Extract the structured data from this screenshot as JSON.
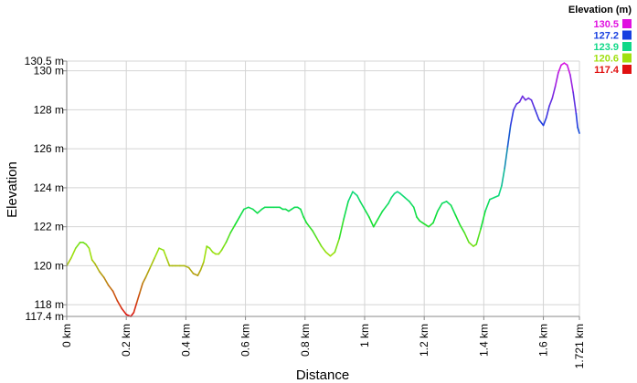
{
  "chart_data": {
    "type": "line",
    "title": "",
    "xlabel": "Distance",
    "ylabel": "Elevation",
    "x_unit": "km",
    "y_unit": "m",
    "xlim": [
      0,
      1.721
    ],
    "ylim": [
      117.4,
      130.5
    ],
    "x_ticks": [
      0,
      0.2,
      0.4,
      0.6,
      0.8,
      1.0,
      1.2,
      1.4,
      1.6,
      1.721
    ],
    "x_tick_labels": [
      "0 km",
      "0.2 km",
      "0.4 km",
      "0.6 km",
      "0.8 km",
      "1 km",
      "1.2 km",
      "1.4 km",
      "1.6 km",
      "1.721 km"
    ],
    "y_ticks": [
      117.4,
      118,
      120,
      122,
      124,
      126,
      128,
      130,
      130.5
    ],
    "y_tick_labels": [
      "117.4 m",
      "118 m",
      "120 m",
      "122 m",
      "124 m",
      "126 m",
      "128 m",
      "130 m",
      "130.5 m"
    ],
    "grid": true,
    "legend": {
      "title": "Elevation (m)",
      "placement": "top-right",
      "entries": [
        {
          "label": "130.5",
          "color": "#e010e0"
        },
        {
          "label": "127.2",
          "color": "#1840e0"
        },
        {
          "label": "123.9",
          "color": "#10d888"
        },
        {
          "label": "120.6",
          "color": "#a0e010"
        },
        {
          "label": "117.4",
          "color": "#e01010"
        }
      ]
    },
    "colormap": [
      {
        "value": 117.4,
        "color": "#e01010"
      },
      {
        "value": 120.6,
        "color": "#a0e010"
      },
      {
        "value": 122.3,
        "color": "#10e030"
      },
      {
        "value": 123.9,
        "color": "#10d888"
      },
      {
        "value": 127.2,
        "color": "#1840e0"
      },
      {
        "value": 130.5,
        "color": "#e010e0"
      }
    ],
    "series": [
      {
        "x": [
          0.0,
          0.015,
          0.03,
          0.045,
          0.055,
          0.065,
          0.075,
          0.085,
          0.095,
          0.11,
          0.125,
          0.14,
          0.155,
          0.17,
          0.185,
          0.2,
          0.215,
          0.225,
          0.235,
          0.245,
          0.255,
          0.265,
          0.28,
          0.295,
          0.31,
          0.325,
          0.335,
          0.345,
          0.355,
          0.365,
          0.38,
          0.395,
          0.41,
          0.425,
          0.44,
          0.45,
          0.46,
          0.47,
          0.48,
          0.49,
          0.5,
          0.51,
          0.52,
          0.535,
          0.55,
          0.565,
          0.58,
          0.595,
          0.61,
          0.625,
          0.64,
          0.655,
          0.665,
          0.675,
          0.685,
          0.695,
          0.705,
          0.715,
          0.725,
          0.735,
          0.745,
          0.755,
          0.765,
          0.775,
          0.785,
          0.795,
          0.805,
          0.815,
          0.825,
          0.84,
          0.855,
          0.87,
          0.885,
          0.9,
          0.915,
          0.93,
          0.945,
          0.96,
          0.975,
          0.985,
          1.0,
          1.015,
          1.03,
          1.045,
          1.06,
          1.07,
          1.08,
          1.09,
          1.1,
          1.11,
          1.12,
          1.135,
          1.15,
          1.165,
          1.175,
          1.185,
          1.195,
          1.205,
          1.215,
          1.23,
          1.245,
          1.26,
          1.275,
          1.29,
          1.305,
          1.32,
          1.335,
          1.35,
          1.365,
          1.375,
          1.39,
          1.405,
          1.42,
          1.435,
          1.45,
          1.46,
          1.47,
          1.48,
          1.49,
          1.5,
          1.51,
          1.52,
          1.53,
          1.54,
          1.55,
          1.56,
          1.57,
          1.585,
          1.6,
          1.61,
          1.62,
          1.63,
          1.64,
          1.65,
          1.66,
          1.67,
          1.68,
          1.69,
          1.7,
          1.71,
          1.715,
          1.721
        ],
        "y": [
          120.0,
          120.4,
          120.9,
          121.2,
          121.2,
          121.1,
          120.9,
          120.3,
          120.1,
          119.7,
          119.4,
          119.0,
          118.7,
          118.2,
          117.8,
          117.5,
          117.4,
          117.6,
          118.1,
          118.6,
          119.1,
          119.4,
          119.9,
          120.4,
          120.9,
          120.8,
          120.4,
          120.0,
          120.0,
          120.0,
          120.0,
          120.0,
          119.9,
          119.6,
          119.5,
          119.8,
          120.2,
          121.0,
          120.9,
          120.7,
          120.6,
          120.6,
          120.8,
          121.2,
          121.7,
          122.1,
          122.5,
          122.9,
          123.0,
          122.9,
          122.7,
          122.9,
          123.0,
          123.0,
          123.0,
          123.0,
          123.0,
          123.0,
          122.9,
          122.9,
          122.8,
          122.9,
          123.0,
          123.0,
          122.9,
          122.5,
          122.2,
          122.0,
          121.8,
          121.4,
          121.0,
          120.7,
          120.5,
          120.7,
          121.4,
          122.4,
          123.3,
          123.8,
          123.6,
          123.3,
          122.9,
          122.5,
          122.0,
          122.4,
          122.8,
          123.0,
          123.2,
          123.5,
          123.7,
          123.8,
          123.7,
          123.5,
          123.3,
          123.0,
          122.5,
          122.3,
          122.2,
          122.1,
          122.0,
          122.2,
          122.8,
          123.2,
          123.3,
          123.1,
          122.6,
          122.1,
          121.7,
          121.2,
          121.0,
          121.1,
          121.9,
          122.8,
          123.4,
          123.5,
          123.6,
          124.1,
          125.0,
          126.1,
          127.2,
          128.0,
          128.3,
          128.4,
          128.7,
          128.5,
          128.6,
          128.5,
          128.1,
          127.5,
          127.2,
          127.6,
          128.2,
          128.6,
          129.2,
          129.9,
          130.3,
          130.4,
          130.3,
          129.8,
          128.9,
          127.8,
          127.1,
          126.8
        ]
      }
    ]
  }
}
